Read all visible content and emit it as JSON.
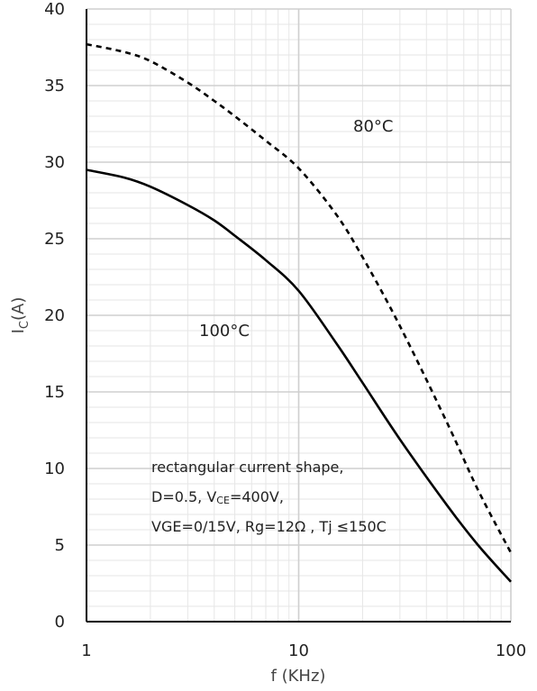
{
  "chart_data": {
    "type": "line",
    "title": "",
    "xlabel": "f (KHz)",
    "ylabel_main": "I",
    "ylabel_sub": "C",
    "ylabel_tail": "(A)",
    "x_scale": "log",
    "xlim": [
      1,
      100
    ],
    "ylim": [
      0,
      40
    ],
    "x_ticks": [
      1,
      10,
      100
    ],
    "x_tick_labels": [
      "1",
      "10",
      "100"
    ],
    "y_ticks": [
      0,
      5,
      10,
      15,
      20,
      25,
      30,
      35,
      40
    ],
    "y_tick_labels": [
      "0",
      "5",
      "10",
      "15",
      "20",
      "25",
      "30",
      "35",
      "40"
    ],
    "grid": true,
    "series": [
      {
        "name": "80°C",
        "style": "dashed",
        "color": "#000000",
        "x": [
          1,
          1.5,
          2,
          3,
          4,
          5,
          7,
          10,
          15,
          20,
          30,
          50,
          70,
          100
        ],
        "y": [
          37.7,
          37.2,
          36.6,
          35.2,
          34.0,
          33.0,
          31.4,
          29.6,
          26.6,
          23.8,
          19.3,
          13.0,
          8.6,
          4.5
        ]
      },
      {
        "name": "100°C",
        "style": "solid",
        "color": "#000000",
        "x": [
          1,
          1.5,
          2,
          3,
          4,
          5,
          7,
          10,
          15,
          20,
          30,
          50,
          70,
          100
        ],
        "y": [
          29.5,
          29.0,
          28.4,
          27.2,
          26.2,
          25.2,
          23.6,
          21.6,
          18.2,
          15.6,
          11.9,
          7.6,
          5.0,
          2.6
        ]
      }
    ],
    "annotations": {
      "line1": "rectangular current shape,",
      "line2_a": "D=0.5,  V",
      "line2_sub": "CE",
      "line2_b": "=400V,",
      "line3": "VGE=0/15V,  Rg=12Ω , Tj ≤150C"
    }
  }
}
